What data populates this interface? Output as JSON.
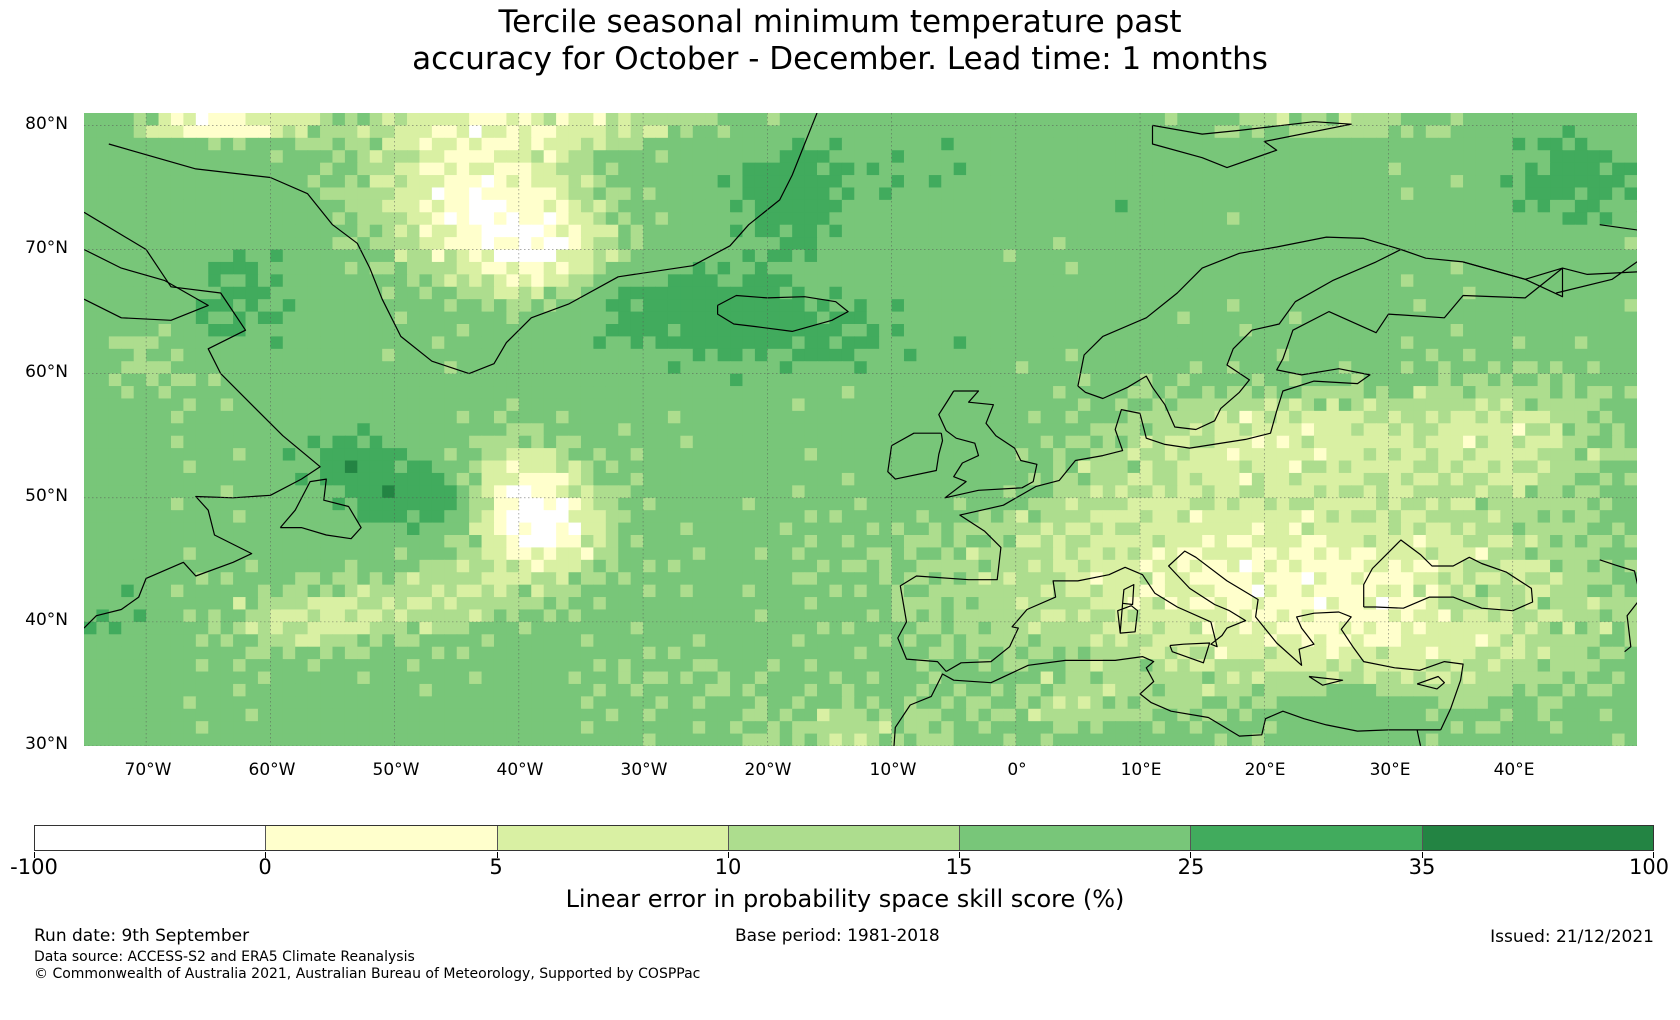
{
  "title": {
    "line1": "Tercile seasonal minimum temperature past",
    "line2": "accuracy for October - December. Lead time: 1 months"
  },
  "map": {
    "lat_labels": [
      "80°N",
      "70°N",
      "60°N",
      "50°N",
      "40°N",
      "30°N"
    ],
    "lon_labels": [
      "70°W",
      "60°W",
      "50°W",
      "40°W",
      "30°W",
      "20°W",
      "10°W",
      "0°",
      "10°E",
      "20°E",
      "30°E",
      "40°E"
    ],
    "extent": {
      "lon_min": -75,
      "lon_max": 50,
      "lat_min": 30,
      "lat_max": 81
    },
    "fill_colors": [
      "#ffffff",
      "#ffffcc",
      "#d9f0a3",
      "#addd8e",
      "#78c679",
      "#41ab5d",
      "#238443"
    ],
    "coastline_color": "#000000",
    "grid_color": "#555555"
  },
  "colorbar": {
    "title": "Linear error in probability space skill score (%)",
    "tick_labels": [
      "-100",
      "0",
      "5",
      "10",
      "15",
      "25",
      "35",
      "100"
    ],
    "colors": [
      "#ffffff",
      "#ffffcc",
      "#d9f0a3",
      "#addd8e",
      "#78c679",
      "#41ab5d",
      "#238443"
    ]
  },
  "footer": {
    "run_date": "Run date: 9th September",
    "base_period": "Base period: 1981-2018",
    "issued": "Issued: 21/12/2021",
    "data_source": "Data source: ACCESS-S2 and ERA5 Climate Reanalysis",
    "copyright": "© Commonwealth of Australia 2021, Australian Bureau of Meteorology, Supported by COSPPac"
  }
}
